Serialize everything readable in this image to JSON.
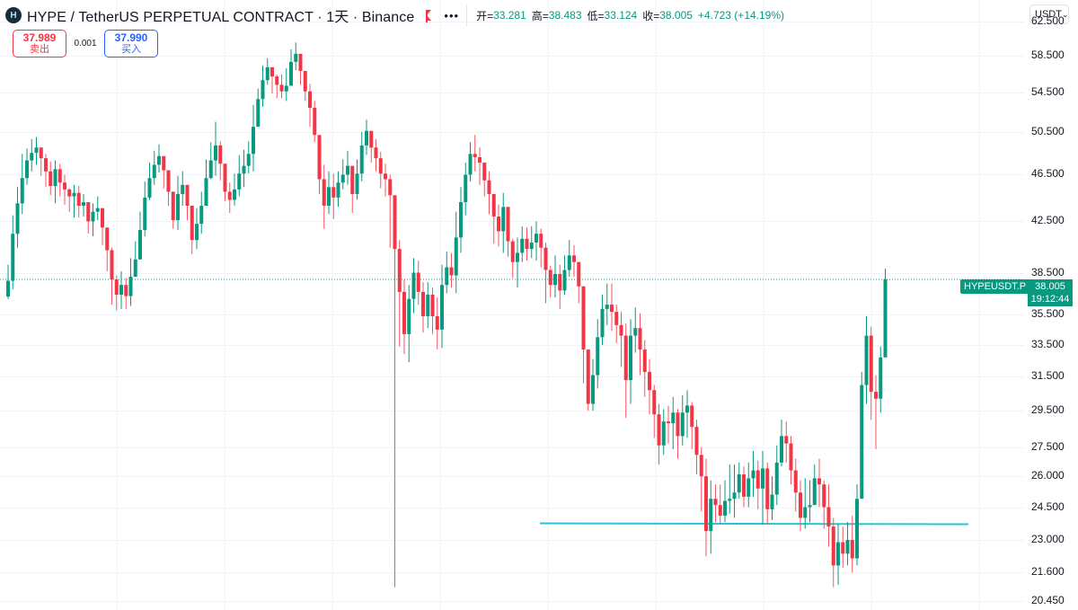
{
  "header": {
    "title": "HYPE / TetherUS PERPETUAL CONTRACT · 1天 · Binance",
    "logo_glyph": "H",
    "more_glyph": "•••",
    "ohlc": {
      "open_label": "开=",
      "open": "33.281",
      "high_label": "高=",
      "high": "38.483",
      "low_label": "低=",
      "low": "33.124",
      "close_label": "收=",
      "close": "38.005",
      "change": "+4.723 (+14.19%)"
    }
  },
  "trade": {
    "sell_price": "37.989",
    "sell_label": "卖出",
    "spread": "0.001",
    "buy_price": "37.990",
    "buy_label": "买入"
  },
  "currency": {
    "label": "USDT",
    "chevron": "⌄"
  },
  "price_tag": {
    "symbol": "HYPEUSDT.P",
    "price": "38.005",
    "countdown": "19:12:44"
  },
  "axis": {
    "ticks": [
      "62.500",
      "58.500",
      "54.500",
      "50.500",
      "46.500",
      "42.500",
      "38.500",
      "35.500",
      "33.500",
      "31.500",
      "29.500",
      "27.500",
      "26.000",
      "24.500",
      "23.000",
      "21.600",
      "20.450"
    ]
  },
  "colors": {
    "up": "#089981",
    "down": "#f23645",
    "down_wick": "#f7525f",
    "hline": "#26c6da",
    "grid": "#f0f3fa"
  },
  "chart_data": {
    "type": "candlestick",
    "interval": "1D",
    "scale": "log",
    "ylim": [
      20.2,
      64.0
    ],
    "last_close": 38.005,
    "horizontal_line": {
      "price": 23.75,
      "span": "right portion"
    },
    "closes": [
      37.9,
      41.5,
      44.0,
      46.2,
      47.8,
      48.5,
      49.0,
      48.0,
      46.8,
      45.5,
      47.0,
      45.8,
      45.2,
      44.6,
      44.9,
      43.8,
      44.1,
      42.5,
      43.3,
      43.6,
      42.0,
      40.2,
      38.0,
      36.9,
      37.6,
      36.8,
      38.2,
      39.5,
      41.8,
      44.5,
      46.2,
      47.4,
      48.2,
      46.9,
      45.0,
      42.6,
      44.8,
      45.6,
      43.8,
      41.0,
      42.3,
      43.8,
      46.2,
      47.8,
      49.2,
      47.5,
      45.0,
      44.3,
      45.2,
      46.6,
      47.3,
      48.4,
      51.0,
      53.8,
      55.8,
      57.2,
      56.2,
      55.3,
      54.6,
      55.2,
      57.8,
      58.7,
      56.8,
      54.6,
      52.9,
      50.2,
      46.1,
      43.8,
      45.4,
      44.5,
      45.8,
      46.5,
      47.3,
      44.8,
      46.6,
      49.2,
      50.6,
      49.0,
      48.0,
      46.6,
      46.1,
      44.7,
      40.3,
      37.1,
      34.2,
      36.6,
      38.5,
      37.1,
      35.4,
      36.9,
      35.4,
      34.5,
      37.6,
      38.9,
      38.3,
      41.2,
      44.1,
      46.5,
      48.4,
      48.1,
      47.6,
      46.0,
      44.8,
      42.9,
      41.7,
      43.7,
      40.9,
      39.3,
      40.0,
      41.1,
      40.3,
      40.8,
      41.5,
      40.4,
      38.7,
      37.6,
      38.4,
      37.2,
      38.7,
      39.8,
      39.3,
      37.5,
      33.2,
      29.9,
      31.6,
      34.0,
      35.9,
      36.2,
      35.7,
      34.8,
      34.1,
      31.3,
      34.1,
      34.6,
      33.2,
      31.8,
      30.7,
      29.3,
      27.6,
      28.9,
      28.8,
      29.4,
      28.1,
      29.4,
      29.8,
      28.6,
      27.1,
      26.0,
      23.4,
      24.9,
      24.6,
      24.1,
      24.8,
      24.9,
      25.2,
      26.1,
      25.0,
      25.9,
      26.3,
      25.4,
      26.4,
      24.4,
      25.1,
      26.7,
      28.1,
      27.7,
      26.3,
      25.2,
      24.0,
      24.5,
      24.6,
      25.9,
      25.6,
      24.5,
      23.6,
      21.9,
      22.9,
      22.4,
      23.0,
      22.2,
      24.9,
      31.0,
      34.1,
      30.6,
      30.2,
      32.7,
      38.0
    ],
    "highs": [
      39.1,
      43.0,
      45.4,
      48.4,
      48.9,
      49.8,
      50.0,
      49.0,
      48.4,
      47.7,
      47.8,
      47.5,
      46.5,
      45.3,
      45.6,
      45.5,
      44.8,
      44.1,
      44.0,
      44.6,
      43.4,
      41.9,
      40.4,
      38.3,
      38.6,
      38.1,
      39.6,
      40.9,
      43.3,
      45.9,
      47.6,
      48.7,
      49.3,
      48.1,
      46.6,
      45.0,
      46.4,
      46.8,
      45.5,
      43.3,
      43.6,
      45.0,
      47.9,
      49.5,
      51.5,
      49.6,
      47.1,
      45.8,
      46.6,
      48.3,
      48.8,
      49.6,
      53.2,
      54.9,
      57.4,
      58.2,
      57.2,
      56.4,
      56.4,
      57.1,
      59.2,
      60.0,
      58.4,
      56.6,
      55.4,
      53.6,
      50.0,
      47.4,
      46.8,
      46.6,
      46.8,
      47.9,
      48.7,
      46.7,
      47.9,
      50.5,
      51.7,
      50.4,
      49.8,
      48.6,
      47.5,
      46.5,
      44.5,
      41.0,
      38.0,
      37.6,
      39.6,
      39.4,
      37.8,
      37.8,
      37.4,
      36.7,
      39.1,
      40.1,
      40.0,
      43.3,
      45.4,
      47.6,
      49.5,
      50.2,
      49.0,
      47.5,
      46.8,
      44.7,
      43.9,
      44.9,
      43.2,
      41.1,
      41.2,
      42.1,
      42.0,
      42.1,
      42.5,
      41.9,
      40.8,
      39.0,
      39.8,
      39.1,
      39.8,
      41.0,
      40.6,
      39.1,
      36.3,
      32.9,
      32.6,
      35.2,
      36.9,
      37.7,
      37.7,
      36.2,
      35.7,
      34.9,
      35.2,
      36.0,
      35.6,
      33.8,
      32.6,
      31.0,
      29.9,
      29.6,
      29.8,
      30.3,
      29.6,
      30.4,
      30.7,
      30.0,
      29.0,
      27.5,
      26.9,
      25.8,
      25.6,
      25.6,
      25.8,
      26.6,
      26.6,
      26.7,
      26.5,
      26.7,
      27.3,
      26.8,
      27.3,
      26.7,
      26.0,
      27.6,
      29.0,
      28.9,
      28.1,
      26.9,
      25.8,
      25.9,
      25.8,
      26.6,
      26.9,
      25.8,
      25.6,
      24.0,
      23.7,
      23.6,
      23.8,
      24.1,
      25.6,
      31.8,
      35.4,
      34.7,
      31.6,
      33.4,
      38.8
    ],
    "lows": [
      36.6,
      37.3,
      40.4,
      43.1,
      45.6,
      46.8,
      47.4,
      46.4,
      45.4,
      44.7,
      44.0,
      44.6,
      43.9,
      43.3,
      42.8,
      42.8,
      42.9,
      41.5,
      41.3,
      42.6,
      40.6,
      38.6,
      36.2,
      35.8,
      35.9,
      35.9,
      36.1,
      38.2,
      39.5,
      41.3,
      44.3,
      45.6,
      46.7,
      45.3,
      43.8,
      41.9,
      41.8,
      43.8,
      42.6,
      39.9,
      40.3,
      41.5,
      44.7,
      46.1,
      46.4,
      46.0,
      44.2,
      43.2,
      43.8,
      44.6,
      45.4,
      46.6,
      46.8,
      51.7,
      53.0,
      55.3,
      54.4,
      53.9,
      53.9,
      53.6,
      55.2,
      56.9,
      55.3,
      53.6,
      51.0,
      49.5,
      44.8,
      41.9,
      43.1,
      42.7,
      43.7,
      45.2,
      45.6,
      43.2,
      44.3,
      45.9,
      48.3,
      47.6,
      46.8,
      45.3,
      44.6,
      40.4,
      21.0,
      33.4,
      32.9,
      32.4,
      35.6,
      36.2,
      34.3,
      34.6,
      34.2,
      33.2,
      33.3,
      37.0,
      37.4,
      37.0,
      40.0,
      43.0,
      45.9,
      46.8,
      45.6,
      44.6,
      43.1,
      40.7,
      40.5,
      40.0,
      39.7,
      38.1,
      37.4,
      39.3,
      39.4,
      39.6,
      39.4,
      38.9,
      36.3,
      36.7,
      36.7,
      35.9,
      36.9,
      38.2,
      38.2,
      36.3,
      31.1,
      29.5,
      29.5,
      30.8,
      33.5,
      34.8,
      34.4,
      33.6,
      32.1,
      29.1,
      29.9,
      33.0,
      31.6,
      30.3,
      29.3,
      28.0,
      26.6,
      27.1,
      27.7,
      27.4,
      26.9,
      27.6,
      28.0,
      27.4,
      26.1,
      24.3,
      22.3,
      22.4,
      23.8,
      23.7,
      23.8,
      24.2,
      24.0,
      24.9,
      24.5,
      24.5,
      25.0,
      24.4,
      23.7,
      23.7,
      23.9,
      24.6,
      26.5,
      26.7,
      25.6,
      24.3,
      23.4,
      23.5,
      23.8,
      24.7,
      24.5,
      23.5,
      22.7,
      21.0,
      21.1,
      21.8,
      21.9,
      21.6,
      21.9,
      25.0,
      29.9,
      29.0,
      27.4,
      29.4,
      33.1
    ]
  }
}
